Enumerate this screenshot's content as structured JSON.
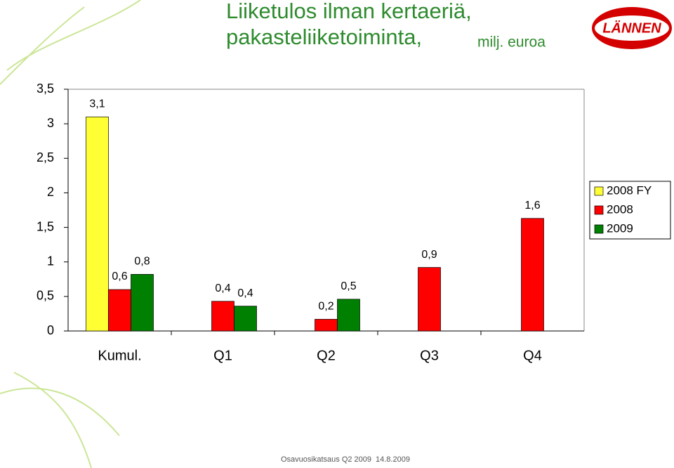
{
  "chart_data": {
    "type": "bar",
    "title": "Liiketulos ilman kertaeriä,",
    "subtitle": "pakasteliiketoiminta,",
    "unit": "milj. euroa",
    "categories": [
      "Kumul.",
      "Q1",
      "Q2",
      "Q3",
      "Q4"
    ],
    "series": [
      {
        "name": "2008 FY",
        "color": "#ffff33",
        "values": [
          3.1,
          null,
          null,
          null,
          null
        ],
        "value_labels": [
          "3,1",
          null,
          null,
          null,
          null
        ]
      },
      {
        "name": "2008",
        "color": "#ff0000",
        "values": [
          0.6,
          0.43,
          0.17,
          0.92,
          1.63
        ],
        "value_labels": [
          "0,6",
          "0,4",
          "0,2",
          "0,9",
          "1,6"
        ]
      },
      {
        "name": "2009",
        "color": "#008000",
        "values": [
          0.82,
          0.36,
          0.46,
          null,
          null
        ],
        "value_labels": [
          "0,8",
          "0,4",
          "0,5",
          null,
          null
        ]
      }
    ],
    "ylim": [
      0,
      3.5
    ],
    "yticks": [
      0,
      {
        "value": 0.5,
        "label": "0,5"
      },
      1,
      {
        "value": 1.5,
        "label": "1,5"
      },
      2,
      {
        "value": 2.5,
        "label": "2,5"
      },
      3,
      {
        "value": 3.5,
        "label": "3,5"
      }
    ],
    "grid": false,
    "legend": "right"
  },
  "logo": "LÄNNEN",
  "footer": {
    "text": "Osavuosikatsaus Q2 2009",
    "date": "14.8.2009"
  }
}
